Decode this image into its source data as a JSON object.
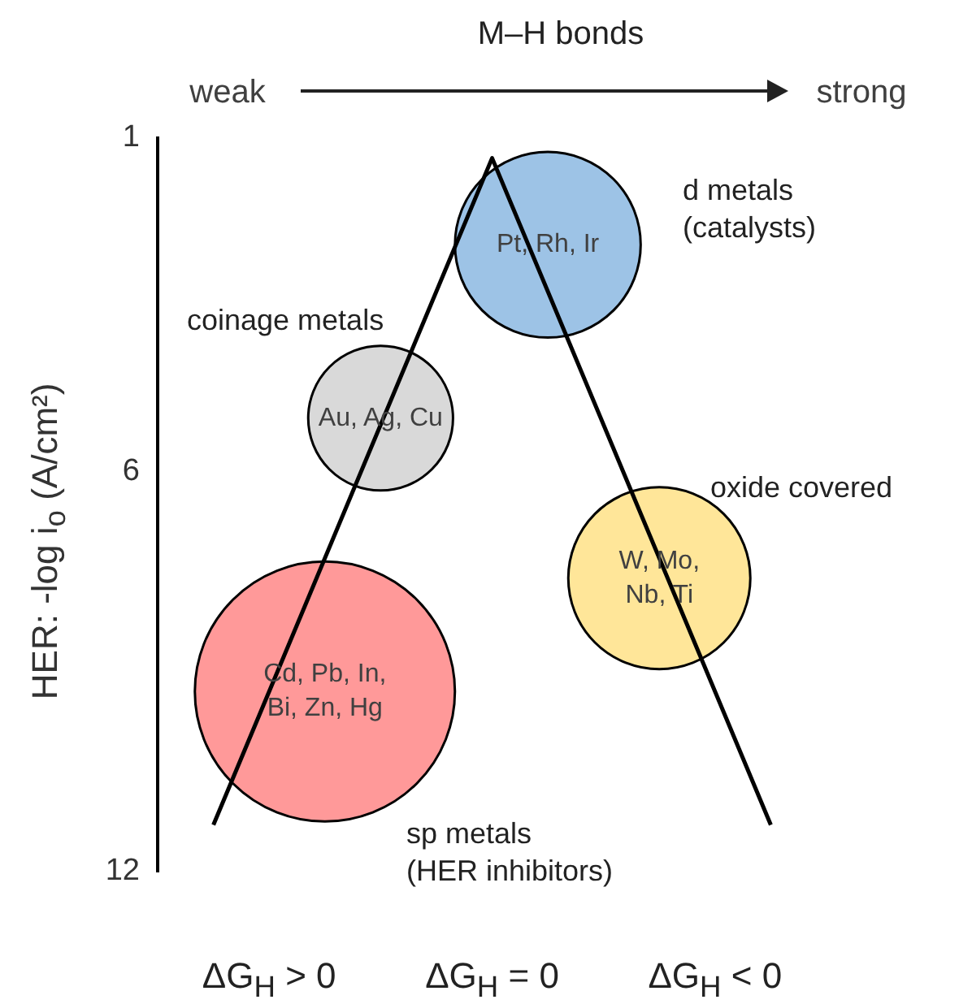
{
  "chart_data": {
    "type": "bubble",
    "title": "M–H bonds",
    "ylabel": "HER: -log i$_{o}$ (A/cm²)",
    "categories": [
      null,
      null,
      "ΔG$_{H}$ > 0",
      null,
      null,
      null,
      "ΔG$_{H}$ = 0",
      null,
      null,
      null,
      "ΔG$_{H}$ < 0",
      null,
      null
    ],
    "ylim": [
      12,
      1
    ],
    "yticks": [
      1,
      6,
      12
    ],
    "series": [
      {
        "type": "line",
        "color": "#000000",
        "marker": "none",
        "values": [
          null,
          11.3,
          null,
          null,
          null,
          null,
          1.3,
          null,
          null,
          null,
          null,
          11.3,
          null
        ]
      },
      {
        "type": "bubble",
        "values": [
          null,
          null,
          null,
          9.3,
          5.2,
          null,
          null,
          2.6,
          null,
          7.6,
          null,
          null,
          null
        ],
        "sizes": [
          null,
          null,
          null,
          1,
          0.31,
          null,
          null,
          0.51,
          null,
          0.49,
          null,
          null,
          null
        ],
        "colors": [
          null,
          null,
          null,
          "#ff9999",
          "#d9d9d9",
          null,
          null,
          "#9dc3e6",
          null,
          "#ffe699",
          null,
          null,
          null
        ],
        "value_labels": [
          null,
          null,
          null,
          "Cd, Pb, In,\nBi, Zn, Hg",
          "Au, Ag, Cu",
          null,
          null,
          "Pt, Rh, Ir",
          null,
          "W, Mo,\nNb, Ti",
          null,
          null,
          null
        ]
      }
    ],
    "annotations": [
      "weak",
      "strong",
      "d metals\n(catalysts)",
      "coinage metals",
      "oxide covered",
      "sp metals\n(HER inhibitors)"
    ]
  }
}
